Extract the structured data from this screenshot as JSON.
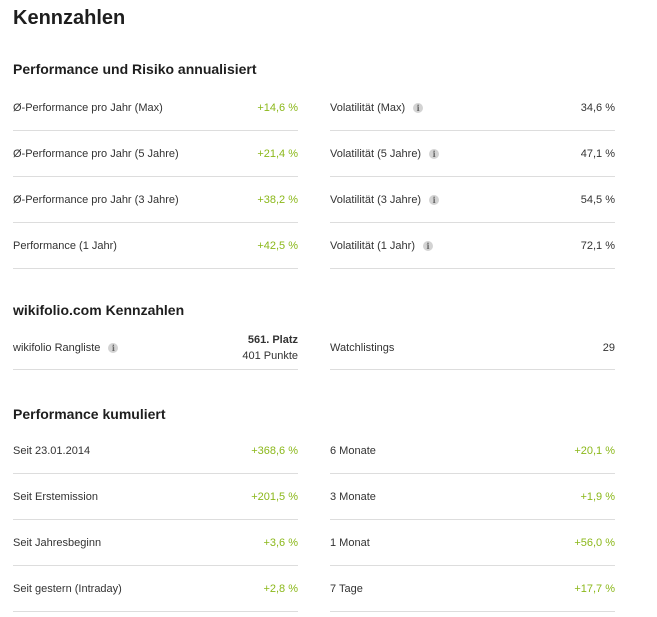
{
  "title": "Kennzahlen",
  "sections": {
    "perf_risk": {
      "title": "Performance und Risiko annualisiert",
      "left": [
        {
          "label": "Ø-Performance pro Jahr (Max)",
          "value": "+14,6 %"
        },
        {
          "label": "Ø-Performance pro Jahr (5 Jahre)",
          "value": "+21,4 %"
        },
        {
          "label": "Ø-Performance pro Jahr (3 Jahre)",
          "value": "+38,2 %"
        },
        {
          "label": "Performance (1 Jahr)",
          "value": "+42,5 %"
        }
      ],
      "right": [
        {
          "label": "Volatilität (Max)",
          "value": "34,6 %"
        },
        {
          "label": "Volatilität (5 Jahre)",
          "value": "47,1 %"
        },
        {
          "label": "Volatilität (3 Jahre)",
          "value": "54,5 %"
        },
        {
          "label": "Volatilität (1 Jahr)",
          "value": "72,1 %"
        }
      ]
    },
    "wikifolio": {
      "title": "wikifolio.com Kennzahlen",
      "rangliste_label": "wikifolio Rangliste",
      "rangliste_platz": "561. Platz",
      "rangliste_punkte": "401 Punkte",
      "watchlistings_label": "Watchlistings",
      "watchlistings_value": "29"
    },
    "kumuliert": {
      "title": "Performance kumuliert",
      "left": [
        {
          "label": "Seit 23.01.2014",
          "value": "+368,6 %"
        },
        {
          "label": "Seit Erstemission",
          "value": "+201,5 %"
        },
        {
          "label": "Seit Jahresbeginn",
          "value": "+3,6 %"
        },
        {
          "label": "Seit gestern (Intraday)",
          "value": "+2,8 %"
        }
      ],
      "right": [
        {
          "label": "6 Monate",
          "value": "+20,1 %"
        },
        {
          "label": "3 Monate",
          "value": "+1,9 %"
        },
        {
          "label": "1 Monat",
          "value": "+56,0 %"
        },
        {
          "label": "7 Tage",
          "value": "+17,7 %"
        }
      ]
    }
  },
  "info_icon_glyph": "i",
  "colors": {
    "positive": "#8bb81a",
    "text": "#333333",
    "divider": "#dddddd"
  }
}
